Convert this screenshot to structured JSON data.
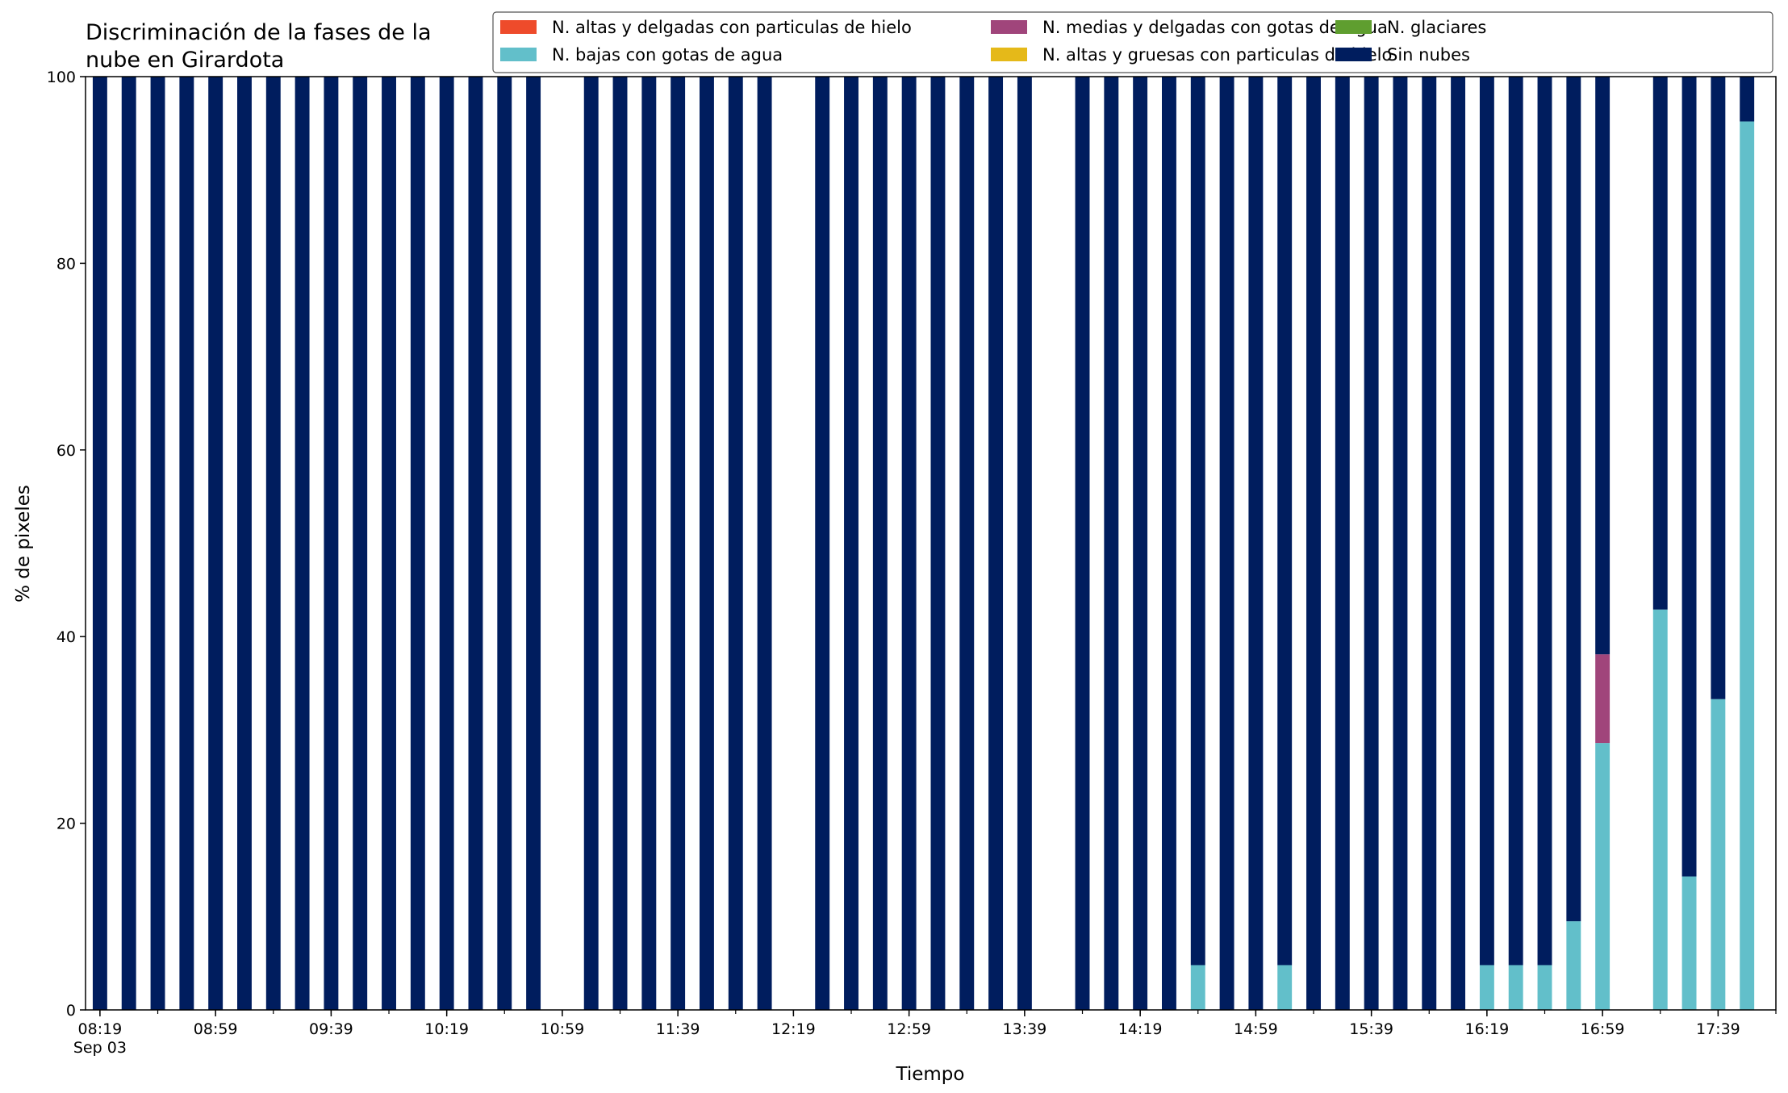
{
  "chart_data": {
    "type": "bar",
    "stacked": true,
    "title_lines": [
      "Discriminación de la fases de la",
      "nube en Girardota"
    ],
    "xlabel": "Tiempo",
    "ylabel": "% de pixeles",
    "ylim": [
      0,
      100
    ],
    "yticks": [
      0,
      20,
      40,
      60,
      80,
      100
    ],
    "xlim": [
      "08:14",
      "17:59"
    ],
    "xtick_labels": [
      "08:19",
      "08:59",
      "09:39",
      "10:19",
      "10:59",
      "11:39",
      "12:19",
      "12:59",
      "13:39",
      "14:19",
      "14:59",
      "15:39",
      "16:19",
      "16:59",
      "17:39"
    ],
    "x_date_label": "Sep 03",
    "minor_tick_step_min": 20,
    "bar_width_min": 5,
    "legend_position": "top-right",
    "grid": false,
    "series": [
      {
        "name": "N. altas y delgadas con particulas de hielo",
        "color": "#ee4b2b"
      },
      {
        "name": "N. altas y gruesas con particulas de hielo",
        "color": "#e5b919"
      },
      {
        "name": "N. bajas con gotas de agua",
        "color": "#62bfca"
      },
      {
        "name": "N. glaciares",
        "color": "#5f9e2f"
      },
      {
        "name": "N. medias y delgadas con gotas de agua",
        "color": "#a0457b"
      },
      {
        "name": "Sin nubes",
        "color": "#001d5e"
      }
    ],
    "legend_order": [
      0,
      2,
      4,
      1,
      3,
      5
    ],
    "x": [
      "08:19",
      "08:29",
      "08:39",
      "08:49",
      "08:59",
      "09:09",
      "09:19",
      "09:29",
      "09:39",
      "09:49",
      "09:59",
      "10:09",
      "10:19",
      "10:29",
      "10:39",
      "10:49",
      "11:09",
      "11:19",
      "11:29",
      "11:39",
      "11:49",
      "11:59",
      "12:09",
      "12:29",
      "12:39",
      "12:49",
      "12:59",
      "13:09",
      "13:19",
      "13:29",
      "13:39",
      "13:59",
      "14:09",
      "14:19",
      "14:29",
      "14:39",
      "14:49",
      "14:59",
      "15:09",
      "15:19",
      "15:29",
      "15:39",
      "15:49",
      "15:59",
      "16:09",
      "16:19",
      "16:29",
      "16:39",
      "16:49",
      "16:59",
      "17:19",
      "17:29",
      "17:39",
      "17:49"
    ],
    "values": {
      "N. altas y delgadas con particulas de hielo": [
        0,
        0,
        0,
        0,
        0,
        0,
        0,
        0,
        0,
        0,
        0,
        0,
        0,
        0,
        0,
        0,
        0,
        0,
        0,
        0,
        0,
        0,
        0,
        0,
        0,
        0,
        0,
        0,
        0,
        0,
        0,
        0,
        0,
        0,
        0,
        0,
        0,
        0,
        0,
        0,
        0,
        0,
        0,
        0,
        0,
        0,
        0,
        0,
        0,
        0,
        0,
        0,
        0,
        0
      ],
      "N. altas y gruesas con particulas de hielo": [
        0,
        0,
        0,
        0,
        0,
        0,
        0,
        0,
        0,
        0,
        0,
        0,
        0,
        0,
        0,
        0,
        0,
        0,
        0,
        0,
        0,
        0,
        0,
        0,
        0,
        0,
        0,
        0,
        0,
        0,
        0,
        0,
        0,
        0,
        0,
        0,
        0,
        0,
        0,
        0,
        0,
        0,
        0,
        0,
        0,
        0,
        0,
        0,
        0,
        0,
        0,
        0,
        0,
        0
      ],
      "N. bajas con gotas de agua": [
        0,
        0,
        0,
        0,
        0,
        0,
        0,
        0,
        0,
        0,
        0,
        0,
        0,
        0,
        0,
        0,
        0,
        0,
        0,
        0,
        0,
        0,
        0,
        0,
        0,
        0,
        0,
        0,
        0,
        0,
        0,
        0,
        0,
        0,
        0,
        4.8,
        0,
        0,
        4.8,
        0,
        0,
        0,
        0,
        0,
        0,
        4.8,
        4.8,
        4.8,
        9.5,
        28.6,
        42.9,
        14.3,
        33.3,
        95.2
      ],
      "N. glaciares": [
        0,
        0,
        0,
        0,
        0,
        0,
        0,
        0,
        0,
        0,
        0,
        0,
        0,
        0,
        0,
        0,
        0,
        0,
        0,
        0,
        0,
        0,
        0,
        0,
        0,
        0,
        0,
        0,
        0,
        0,
        0,
        0,
        0,
        0,
        0,
        0,
        0,
        0,
        0,
        0,
        0,
        0,
        0,
        0,
        0,
        0,
        0,
        0,
        0,
        0,
        0,
        0,
        0,
        0
      ],
      "N. medias y delgadas con gotas de agua": [
        0,
        0,
        0,
        0,
        0,
        0,
        0,
        0,
        0,
        0,
        0,
        0,
        0,
        0,
        0,
        0,
        0,
        0,
        0,
        0,
        0,
        0,
        0,
        0,
        0,
        0,
        0,
        0,
        0,
        0,
        0,
        0,
        0,
        0,
        0,
        0,
        0,
        0,
        0,
        0,
        0,
        0,
        0,
        0,
        0,
        0,
        0,
        0,
        0,
        9.5,
        0,
        0,
        0,
        0
      ],
      "Sin nubes": [
        100,
        100,
        100,
        100,
        100,
        100,
        100,
        100,
        100,
        100,
        100,
        100,
        100,
        100,
        100,
        100,
        100,
        100,
        100,
        100,
        100,
        100,
        100,
        100,
        100,
        100,
        100,
        100,
        100,
        100,
        100,
        100,
        100,
        100,
        100,
        95.2,
        100,
        100,
        95.2,
        100,
        100,
        100,
        100,
        100,
        100,
        95.2,
        95.2,
        95.2,
        90.5,
        61.9,
        57.1,
        85.7,
        66.7,
        4.8
      ]
    }
  }
}
